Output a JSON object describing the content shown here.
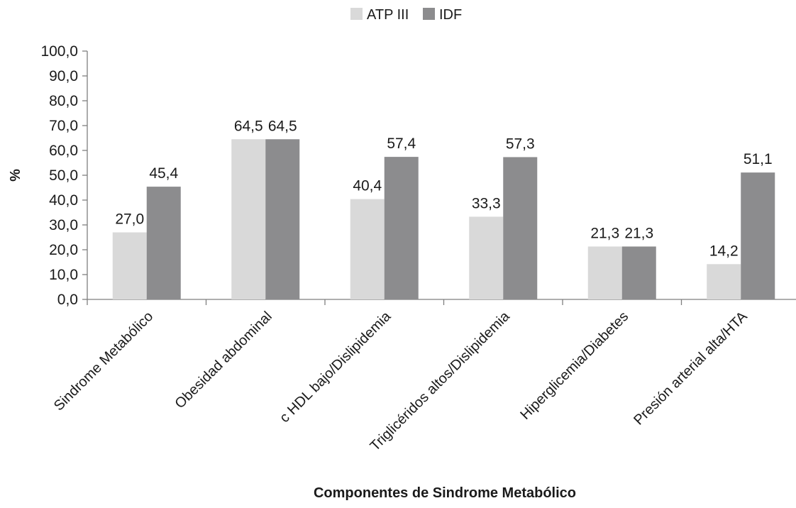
{
  "chart_data": {
    "type": "bar",
    "title": "",
    "xlabel": "Componentes de Sindrome Metabólico",
    "ylabel": "%",
    "ylim": [
      0,
      100
    ],
    "y_ticks": [
      "0,0",
      "10,0",
      "20,0",
      "30,0",
      "40,0",
      "50,0",
      "60,0",
      "70,0",
      "80,0",
      "90,0",
      "100,0"
    ],
    "y_tick_values": [
      0,
      10,
      20,
      30,
      40,
      50,
      60,
      70,
      80,
      90,
      100
    ],
    "grid": false,
    "legend_position": "top-center",
    "categories": [
      "Sindrome Metabólico",
      "Obesidad abdominal",
      "c HDL bajo/Dislipidemia",
      "Triglicéridos altos/Dislipidemia",
      "Hiperglicemia/Diabetes",
      "Presión arterial alta/HTA"
    ],
    "series": [
      {
        "name": "ATP III",
        "color": "#d9d9d9",
        "values": [
          27.0,
          64.5,
          40.4,
          33.3,
          21.3,
          14.2
        ],
        "labels": [
          "27,0",
          "64,5",
          "40,4",
          "33,3",
          "21,3",
          "14,2"
        ]
      },
      {
        "name": "IDF",
        "color": "#8c8c8e",
        "values": [
          45.4,
          64.5,
          57.4,
          57.3,
          21.3,
          51.1
        ],
        "labels": [
          "45,4",
          "64,5",
          "57,4",
          "57,3",
          "21,3",
          "51,1"
        ]
      }
    ]
  }
}
